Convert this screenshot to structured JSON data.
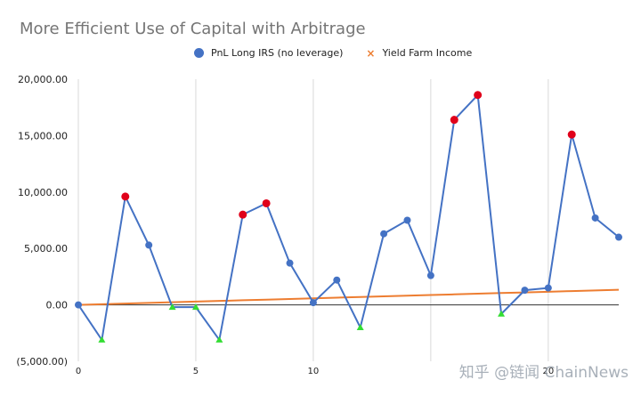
{
  "chart_data": {
    "type": "line",
    "title": "More Efficient Use of Capital with Arbitrage",
    "xlabel": "",
    "ylabel": "",
    "x": [
      0,
      1,
      2,
      3,
      4,
      5,
      6,
      7,
      8,
      9,
      10,
      11,
      12,
      13,
      14,
      15,
      16,
      17,
      18,
      19,
      20,
      21,
      22,
      23
    ],
    "xlim": [
      0,
      23
    ],
    "ylim": [
      -5000,
      20000
    ],
    "x_ticks": [
      0,
      5,
      10,
      15,
      20
    ],
    "x_tick_labels": [
      "0",
      "5",
      "10",
      "",
      "20"
    ],
    "y_ticks": [
      -5000,
      0,
      5000,
      10000,
      15000,
      20000
    ],
    "y_tick_labels": [
      "(5,000.00)",
      "0.00",
      "5,000.00",
      "10,000.00",
      "15,000.00",
      "20,000.00"
    ],
    "grid": "vertical",
    "legend_position": "top",
    "series": [
      {
        "name": "PnL Long IRS (no leverage)",
        "color": "#4472c4",
        "marker": "circle",
        "values": [
          0,
          -3100,
          9600,
          5300,
          -200,
          -200,
          -3100,
          8000,
          9000,
          3700,
          200,
          2200,
          -2000,
          6300,
          7500,
          2600,
          16400,
          18600,
          -800,
          1300,
          1500,
          15100,
          7700,
          6000
        ],
        "highlight_red_indices": [
          2,
          7,
          8,
          16,
          17,
          21
        ],
        "highlight_green_indices": [
          1,
          4,
          5,
          6,
          12,
          18
        ]
      },
      {
        "name": "Yield Farm Income",
        "color": "#ed7d31",
        "marker": "x",
        "values": [
          0,
          58,
          117,
          175,
          233,
          291,
          350,
          408,
          466,
          524,
          583,
          641,
          699,
          757,
          816,
          874,
          932,
          990,
          1049,
          1107,
          1165,
          1223,
          1282,
          1340
        ]
      }
    ],
    "highlight_colors": {
      "peak": "#e0001a",
      "trough": "#33dd33"
    }
  },
  "watermark": "知乎 @链闻 ChainNews"
}
